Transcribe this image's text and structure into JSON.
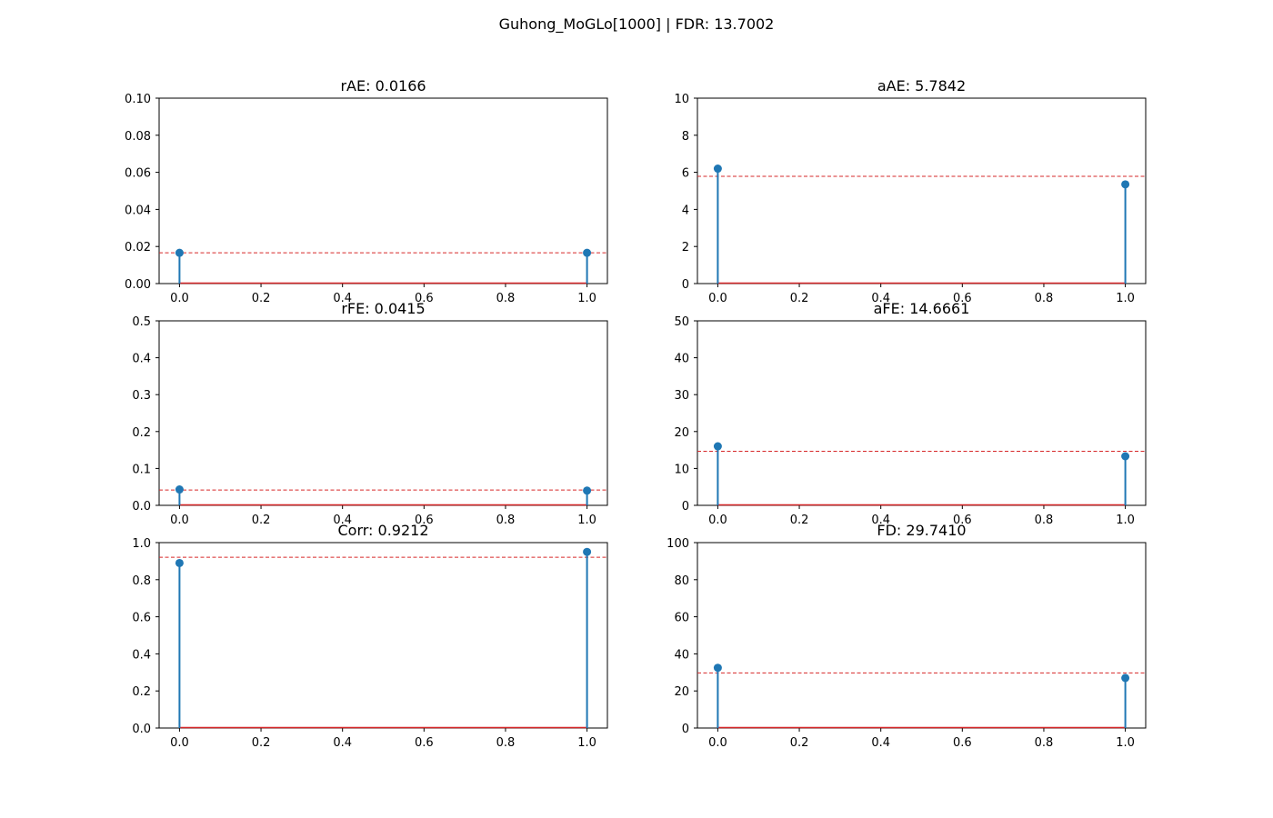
{
  "figure": {
    "suptitle": "Guhong_MoGLo[1000] | FDR: 13.7002"
  },
  "colors": {
    "stem": "#1f77b4",
    "baseline": "#d62728",
    "mean_line": "#d62728",
    "axes": "#000000",
    "background": "#ffffff"
  },
  "chart_data": [
    {
      "type": "stem",
      "title": "rAE: 0.0166",
      "x": [
        0.0,
        1.0
      ],
      "y": [
        0.0166,
        0.0166
      ],
      "mean": 0.0166,
      "xlim": [
        -0.05,
        1.05
      ],
      "ylim": [
        0,
        0.1
      ],
      "xticks": [
        "0.0",
        "0.2",
        "0.4",
        "0.6",
        "0.8",
        "1.0"
      ],
      "yticks": [
        "0.00",
        "0.02",
        "0.04",
        "0.06",
        "0.08",
        "0.10"
      ],
      "grid": false
    },
    {
      "type": "stem",
      "title": "aAE: 5.7842",
      "x": [
        0.0,
        1.0
      ],
      "y": [
        6.2,
        5.35
      ],
      "mean": 5.7842,
      "xlim": [
        -0.05,
        1.05
      ],
      "ylim": [
        0,
        10
      ],
      "xticks": [
        "0.0",
        "0.2",
        "0.4",
        "0.6",
        "0.8",
        "1.0"
      ],
      "yticks": [
        "0",
        "2",
        "4",
        "6",
        "8",
        "10"
      ],
      "grid": false
    },
    {
      "type": "stem",
      "title": "rFE: 0.0415",
      "x": [
        0.0,
        1.0
      ],
      "y": [
        0.043,
        0.04
      ],
      "mean": 0.0415,
      "xlim": [
        -0.05,
        1.05
      ],
      "ylim": [
        0,
        0.5
      ],
      "xticks": [
        "0.0",
        "0.2",
        "0.4",
        "0.6",
        "0.8",
        "1.0"
      ],
      "yticks": [
        "0.0",
        "0.1",
        "0.2",
        "0.3",
        "0.4",
        "0.5"
      ],
      "grid": false
    },
    {
      "type": "stem",
      "title": "aFE: 14.6661",
      "x": [
        0.0,
        1.0
      ],
      "y": [
        16.0,
        13.3
      ],
      "mean": 14.6661,
      "xlim": [
        -0.05,
        1.05
      ],
      "ylim": [
        0,
        50
      ],
      "xticks": [
        "0.0",
        "0.2",
        "0.4",
        "0.6",
        "0.8",
        "1.0"
      ],
      "yticks": [
        "0",
        "10",
        "20",
        "30",
        "40",
        "50"
      ],
      "grid": false
    },
    {
      "type": "stem",
      "title": "Corr: 0.9212",
      "x": [
        0.0,
        1.0
      ],
      "y": [
        0.89,
        0.95
      ],
      "mean": 0.9212,
      "xlim": [
        -0.05,
        1.05
      ],
      "ylim": [
        0,
        1.0
      ],
      "xticks": [
        "0.0",
        "0.2",
        "0.4",
        "0.6",
        "0.8",
        "1.0"
      ],
      "yticks": [
        "0.0",
        "0.2",
        "0.4",
        "0.6",
        "0.8",
        "1.0"
      ],
      "grid": false
    },
    {
      "type": "stem",
      "title": "FD: 29.7410",
      "x": [
        0.0,
        1.0
      ],
      "y": [
        32.5,
        27.0
      ],
      "mean": 29.741,
      "xlim": [
        -0.05,
        1.05
      ],
      "ylim": [
        0,
        100
      ],
      "xticks": [
        "0.0",
        "0.2",
        "0.4",
        "0.6",
        "0.8",
        "1.0"
      ],
      "yticks": [
        "0",
        "20",
        "40",
        "60",
        "80",
        "100"
      ],
      "grid": false
    }
  ]
}
